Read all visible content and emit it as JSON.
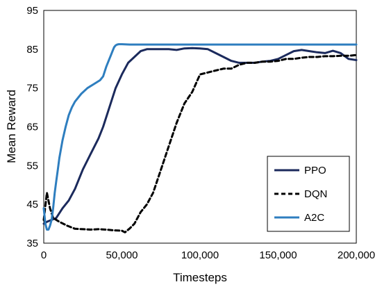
{
  "chart_data": {
    "type": "line",
    "xlabel": "Timesteps",
    "ylabel": "Mean Reward",
    "xlim": [
      0,
      200000
    ],
    "ylim": [
      35,
      95
    ],
    "x_ticks": [
      "0",
      "50,000",
      "100,000",
      "150,000",
      "200,000"
    ],
    "x_tick_values": [
      0,
      50000,
      100000,
      150000,
      200000
    ],
    "y_ticks": [
      "35",
      "45",
      "55",
      "65",
      "75",
      "85",
      "95"
    ],
    "y_tick_values": [
      35,
      45,
      55,
      65,
      75,
      85,
      95
    ],
    "grid": false,
    "legend_position": "bottom-right",
    "series": [
      {
        "name": "PPO",
        "color": "#1b2a5c",
        "dash": "solid",
        "x": [
          0,
          2000,
          5000,
          8000,
          12000,
          16000,
          20000,
          25000,
          30000,
          35000,
          38000,
          42000,
          46000,
          50000,
          54000,
          58000,
          62000,
          66000,
          70000,
          75000,
          80000,
          85000,
          90000,
          95000,
          100000,
          105000,
          110000,
          115000,
          120000,
          125000,
          130000,
          135000,
          140000,
          145000,
          150000,
          155000,
          160000,
          165000,
          170000,
          175000,
          180000,
          185000,
          190000,
          195000,
          200000
        ],
        "y": [
          40,
          40.5,
          41,
          41.5,
          44,
          46,
          49,
          54,
          58,
          62,
          65,
          70,
          75,
          78.5,
          81.5,
          83,
          84.5,
          85,
          85,
          85,
          85,
          84.8,
          85.2,
          85.3,
          85.2,
          85,
          84,
          83,
          82,
          81.5,
          81.5,
          81.5,
          81.8,
          82,
          82.5,
          83.5,
          84.5,
          84.8,
          84.5,
          84.2,
          84,
          84.6,
          84,
          82.5,
          82.2
        ]
      },
      {
        "name": "DQN",
        "color": "#000000",
        "dash": "dashed",
        "x": [
          0,
          2000,
          4000,
          6000,
          10000,
          15000,
          20000,
          25000,
          30000,
          35000,
          40000,
          45000,
          50000,
          52000,
          55000,
          58000,
          62000,
          66000,
          70000,
          75000,
          80000,
          85000,
          90000,
          95000,
          100000,
          105000,
          110000,
          115000,
          120000,
          125000,
          130000,
          135000,
          140000,
          145000,
          150000,
          155000,
          160000,
          165000,
          170000,
          175000,
          180000,
          185000,
          190000,
          195000,
          200000
        ],
        "y": [
          41,
          48,
          44,
          41.5,
          40.5,
          39.5,
          38.7,
          38.6,
          38.5,
          38.6,
          38.5,
          38.3,
          38.2,
          37.8,
          38.8,
          40,
          43,
          45,
          48,
          54,
          60,
          66,
          71,
          74,
          78.5,
          79,
          79.5,
          80,
          80,
          81,
          81.5,
          81.5,
          81.8,
          81.8,
          82,
          82.5,
          82.5,
          82.8,
          83,
          83,
          83.2,
          83.2,
          83.3,
          83.3,
          83.5
        ]
      },
      {
        "name": "A2C",
        "color": "#2e7ebf",
        "dash": "solid",
        "x": [
          0,
          1000,
          2000,
          3000,
          4000,
          5000,
          6000,
          7000,
          8000,
          9000,
          10000,
          12000,
          14000,
          16000,
          18000,
          20000,
          24000,
          28000,
          32000,
          36000,
          38000,
          40000,
          42000,
          43000,
          44000,
          45000,
          46000,
          47000,
          48000,
          50000,
          55000,
          60000,
          70000,
          100000,
          150000,
          200000
        ],
        "y": [
          44,
          40,
          38.5,
          38.5,
          39.5,
          41,
          44,
          48,
          51,
          54,
          57,
          61.5,
          65,
          68,
          70,
          71.5,
          73.5,
          75,
          76,
          77,
          78,
          80.5,
          82.5,
          83.5,
          84.5,
          85.5,
          86,
          86.2,
          86.3,
          86.3,
          86.2,
          86.2,
          86.2,
          86.2,
          86.2,
          86.2
        ]
      }
    ]
  }
}
